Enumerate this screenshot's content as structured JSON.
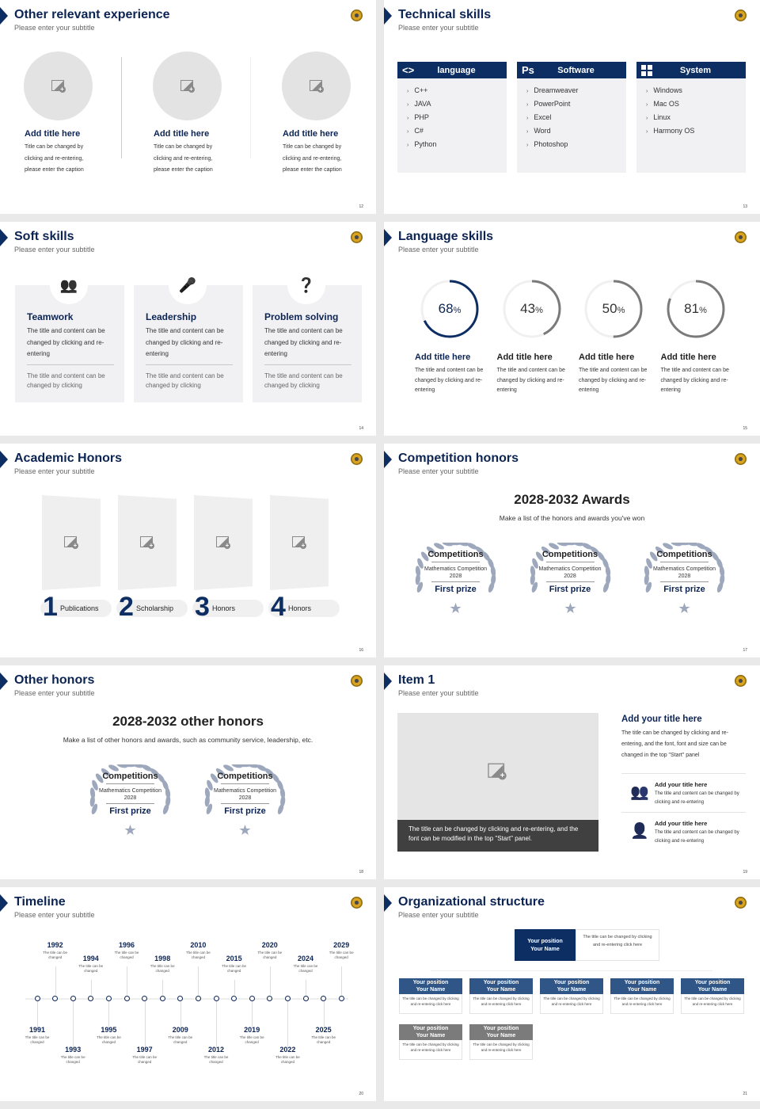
{
  "colors": {
    "navy": "#0c2e63",
    "title": "#0c2454",
    "gray_ring": "#7a7a7a",
    "card": "#f1f1f3",
    "laurel": "#9ea8bd"
  },
  "slides": {
    "s12": {
      "title": "Other relevant experience",
      "subtitle": "Please enter your subtitle",
      "page": "12",
      "items": [
        {
          "title": "Add title here",
          "l1": "Title can be changed by",
          "l2": "clicking and re-entering,",
          "l3": "please enter the caption"
        },
        {
          "title": "Add title here",
          "l1": "Title can be changed by",
          "l2": "clicking and re-entering,",
          "l3": "please enter the caption"
        },
        {
          "title": "Add title here",
          "l1": "Title can be changed by",
          "l2": "clicking and re-entering,",
          "l3": "please enter the caption"
        }
      ]
    },
    "s13": {
      "title": "Technical skills",
      "subtitle": "Please enter your subtitle",
      "page": "13",
      "groups": [
        {
          "icon": "code-icon",
          "glyph": "<>",
          "label": "language",
          "items": [
            "C++",
            "JAVA",
            "PHP",
            "C#",
            "Python"
          ]
        },
        {
          "icon": "photoshop-icon",
          "glyph": "Ps",
          "label": "Software",
          "items": [
            "Dreamweaver",
            "PowerPoint",
            "Excel",
            "Word",
            "Photoshop"
          ]
        },
        {
          "icon": "windows-icon",
          "glyph": "",
          "label": "System",
          "items": [
            "Windows",
            "Mac OS",
            "Linux",
            "Harmony OS"
          ]
        }
      ]
    },
    "s14": {
      "title": "Soft skills",
      "subtitle": "Please enter your subtitle",
      "page": "14",
      "cards": [
        {
          "icon": "team-icon",
          "title": "Teamwork",
          "text": "The title and content can be changed by clicking and re-entering",
          "note": "The title and content can be changed by clicking"
        },
        {
          "icon": "podium-speaker-icon",
          "title": "Leadership",
          "text": "The title and content can be changed by clicking and re-entering",
          "note": "The title and content can be changed by clicking"
        },
        {
          "icon": "question-person-icon",
          "title": "Problem solving",
          "text": "The title and content can be changed by clicking and re-entering",
          "note": "The title and content can be changed by clicking"
        }
      ]
    },
    "s15": {
      "title": "Language skills",
      "subtitle": "Please enter your subtitle",
      "page": "15",
      "rings": [
        {
          "value": 68,
          "num": "68",
          "pct": "%",
          "title": "Add title here",
          "text": "The title and content can be changed by clicking and re-entering",
          "color": "#0c2e63"
        },
        {
          "value": 43,
          "num": "43",
          "pct": "%",
          "title": "Add title here",
          "text": "The title and content can be changed by clicking and re-entering",
          "color": "#7a7a7a"
        },
        {
          "value": 50,
          "num": "50",
          "pct": "%",
          "title": "Add title here",
          "text": "The title and content can be changed by clicking and re-entering",
          "color": "#7a7a7a"
        },
        {
          "value": 81,
          "num": "81",
          "pct": "%",
          "title": "Add title here",
          "text": "The title and content can be changed by clicking and re-entering",
          "color": "#7a7a7a"
        }
      ]
    },
    "s16": {
      "title": "Academic Honors",
      "subtitle": "Please enter your subtitle",
      "page": "16",
      "items": [
        {
          "num": "1",
          "label": "Publications"
        },
        {
          "num": "2",
          "label": "Scholarship"
        },
        {
          "num": "3",
          "label": "Honors"
        },
        {
          "num": "4",
          "label": "Honors"
        }
      ]
    },
    "s17": {
      "title": "Competition honors",
      "subtitle": "Please enter your subtitle",
      "page": "17",
      "heading": "2028-2032 Awards",
      "caption": "Make a list of the honors and awards you've won",
      "awards": [
        {
          "cat": "Competitions",
          "name": "Mathematics Competition",
          "year": "2028",
          "prize": "First prize"
        },
        {
          "cat": "Competitions",
          "name": "Mathematics Competition",
          "year": "2028",
          "prize": "First prize"
        },
        {
          "cat": "Competitions",
          "name": "Mathematics Competition",
          "year": "2028",
          "prize": "First prize"
        }
      ]
    },
    "s18": {
      "title": "Other honors",
      "subtitle": "Please enter your subtitle",
      "page": "18",
      "heading": "2028-2032 other honors",
      "caption": "Make a list of other honors and awards, such as community service, leadership, etc.",
      "awards": [
        {
          "cat": "Competitions",
          "name": "Mathematics Competition",
          "year": "2028",
          "prize": "First prize"
        },
        {
          "cat": "Competitions",
          "name": "Mathematics Competition",
          "year": "2028",
          "prize": "First prize"
        }
      ]
    },
    "s19": {
      "title": "Item 1",
      "subtitle": "Please enter your subtitle",
      "page": "19",
      "caption": "The title can be changed by clicking and re-entering, and the font can be modified in the top \"Start\" panel.",
      "heading": "Add your title here",
      "text": "The title can be changed by clicking and re-entering, and the font, font and size can be changed in the top \"Start\" panel",
      "points": [
        {
          "icon": "group-icon",
          "title": "Add your title here",
          "text": "The title and content can be changed by clicking and re-entering"
        },
        {
          "icon": "person-icon",
          "title": "Add your title here",
          "text": "The title and content can be changed by clicking and re-entering"
        }
      ]
    },
    "s20": {
      "title": "Timeline",
      "subtitle": "Please enter your subtitle",
      "page": "20",
      "events": [
        {
          "year": "1991",
          "text": "The title can be changed"
        },
        {
          "year": "1992",
          "text": "The title can be changed"
        },
        {
          "year": "1993",
          "text": "The title can be changed"
        },
        {
          "year": "1994",
          "text": "The title can be changed"
        },
        {
          "year": "1995",
          "text": "The title can be changed"
        },
        {
          "year": "1996",
          "text": "The title can be changed"
        },
        {
          "year": "1997",
          "text": "The title can be changed"
        },
        {
          "year": "1998",
          "text": "The title can be changed"
        },
        {
          "year": "2009",
          "text": "The title can be changed"
        },
        {
          "year": "2010",
          "text": "The title can be changed"
        },
        {
          "year": "2012",
          "text": "The title can be changed"
        },
        {
          "year": "2015",
          "text": "The title can be changed"
        },
        {
          "year": "2019",
          "text": "The title can be changed"
        },
        {
          "year": "2020",
          "text": "The title can be changed"
        },
        {
          "year": "2022",
          "text": "The title can be changed"
        },
        {
          "year": "2024",
          "text": "The title can be changed"
        },
        {
          "year": "2025",
          "text": "The title can be changed"
        },
        {
          "year": "2029",
          "text": "The title can be changed"
        }
      ]
    },
    "s21": {
      "title": "Organizational structure",
      "subtitle": "Please enter your subtitle",
      "page": "21",
      "top": {
        "position": "Your position",
        "name": "Your Name",
        "text": "The title can be changed by clicking and re-entering click here"
      },
      "row1": [
        {
          "position": "Your position",
          "name": "Your Name",
          "text": "The title can be changed by clicking and re-entering click here"
        },
        {
          "position": "Your position",
          "name": "Your Name",
          "text": "The title can be changed by clicking and re-entering click here"
        },
        {
          "position": "Your position",
          "name": "Your Name",
          "text": "The title can be changed by clicking and re-entering click here"
        },
        {
          "position": "Your position",
          "name": "Your Name",
          "text": "The title can be changed by clicking and re-entering click here"
        },
        {
          "position": "Your position",
          "name": "Your Name",
          "text": "The title can be changed by clicking and re-entering click here"
        }
      ],
      "row2": [
        {
          "position": "Your position",
          "name": "Your Name",
          "text": "The title can be changed by clicking and re-entering click here"
        },
        {
          "position": "Your position",
          "name": "Your Name",
          "text": "The title can be changed by clicking and re-entering click here"
        }
      ]
    }
  }
}
